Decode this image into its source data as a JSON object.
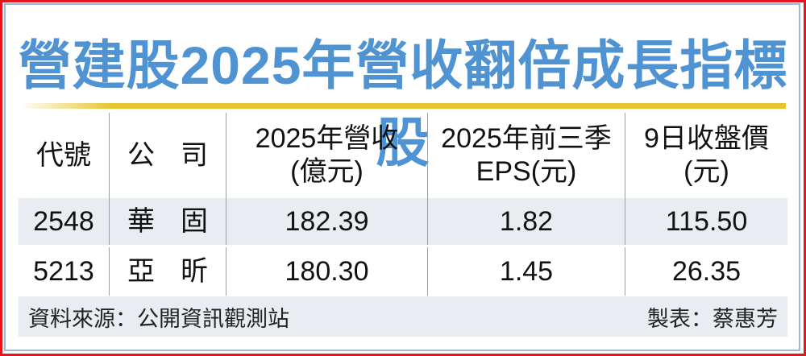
{
  "title": "營建股2025年營收翻倍成長指標股",
  "chart_data": {
    "type": "table",
    "title": "營建股2025年營收翻倍成長指標股",
    "columns": [
      "代號",
      "公司",
      "2025年營收(億元)",
      "2025年前三季EPS(元)",
      "9日收盤價(元)"
    ],
    "header": {
      "code": "代號",
      "company": [
        "公",
        "司"
      ],
      "revenue": [
        "2025年營收",
        "(億元)"
      ],
      "eps": [
        "2025年前三季",
        "EPS(元)"
      ],
      "price": [
        "9日收盤價",
        "(元)"
      ]
    },
    "rows": [
      {
        "code": "2548",
        "company": [
          "華",
          "固"
        ],
        "revenue": "182.39",
        "eps": "1.82",
        "price": "115.50"
      },
      {
        "code": "5213",
        "company": [
          "亞",
          "昕"
        ],
        "revenue": "180.30",
        "eps": "1.45",
        "price": "26.35"
      }
    ]
  },
  "footer": {
    "source": "資料來源：公開資訊觀測站",
    "maker": "製表：蔡惠芳"
  },
  "colors": {
    "title": "#4f93d3",
    "rule": "#e6c530",
    "border": "#e8141c",
    "stripe": "#e9edf2"
  }
}
